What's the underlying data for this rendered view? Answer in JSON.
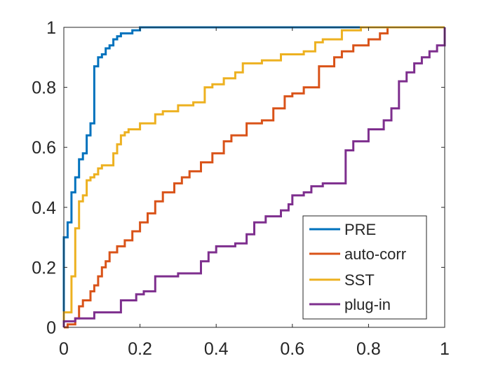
{
  "chart_data": {
    "type": "line",
    "title": "",
    "xlabel": "",
    "ylabel": "",
    "xlim": [
      0,
      1
    ],
    "ylim": [
      0,
      1
    ],
    "xticks": [
      "0",
      "0.2",
      "0.4",
      "0.6",
      "0.8",
      "1"
    ],
    "yticks": [
      "0",
      "0.2",
      "0.4",
      "0.6",
      "0.8",
      "1"
    ],
    "legend_position": "bottom-right",
    "series": [
      {
        "name": "PRE",
        "color": "#0072BD",
        "x": [
          0,
          0,
          0.01,
          0.01,
          0.02,
          0.02,
          0.03,
          0.03,
          0.04,
          0.04,
          0.05,
          0.05,
          0.06,
          0.06,
          0.07,
          0.07,
          0.08,
          0.08,
          0.09,
          0.09,
          0.1,
          0.1,
          0.11,
          0.11,
          0.12,
          0.12,
          0.13,
          0.13,
          0.14,
          0.14,
          0.15,
          0.15,
          0.18,
          0.18,
          0.2,
          0.2,
          0.21,
          0.21,
          1
        ],
        "y": [
          0,
          0.3,
          0.3,
          0.35,
          0.35,
          0.45,
          0.45,
          0.5,
          0.5,
          0.56,
          0.56,
          0.58,
          0.58,
          0.64,
          0.64,
          0.68,
          0.68,
          0.87,
          0.87,
          0.9,
          0.9,
          0.91,
          0.91,
          0.93,
          0.93,
          0.94,
          0.94,
          0.96,
          0.96,
          0.97,
          0.97,
          0.98,
          0.98,
          0.99,
          0.99,
          1,
          1,
          1,
          1
        ]
      },
      {
        "name": "auto-corr",
        "color": "#D95319",
        "x": [
          0,
          0.01,
          0.01,
          0.03,
          0.03,
          0.04,
          0.04,
          0.05,
          0.05,
          0.07,
          0.07,
          0.08,
          0.08,
          0.09,
          0.09,
          0.1,
          0.1,
          0.11,
          0.11,
          0.12,
          0.12,
          0.14,
          0.14,
          0.16,
          0.16,
          0.18,
          0.18,
          0.2,
          0.2,
          0.22,
          0.22,
          0.24,
          0.24,
          0.26,
          0.26,
          0.29,
          0.29,
          0.31,
          0.31,
          0.33,
          0.33,
          0.36,
          0.36,
          0.39,
          0.39,
          0.42,
          0.42,
          0.44,
          0.44,
          0.48,
          0.48,
          0.52,
          0.52,
          0.55,
          0.55,
          0.58,
          0.58,
          0.6,
          0.6,
          0.63,
          0.63,
          0.67,
          0.67,
          0.71,
          0.71,
          0.73,
          0.73,
          0.76,
          0.76,
          0.8,
          0.8,
          0.83,
          0.83,
          0.85,
          0.85,
          0.86,
          1
        ],
        "y": [
          0,
          0,
          0.01,
          0.01,
          0.03,
          0.03,
          0.07,
          0.07,
          0.09,
          0.09,
          0.12,
          0.12,
          0.14,
          0.14,
          0.17,
          0.17,
          0.2,
          0.2,
          0.22,
          0.22,
          0.25,
          0.25,
          0.27,
          0.27,
          0.29,
          0.29,
          0.32,
          0.32,
          0.35,
          0.35,
          0.38,
          0.38,
          0.42,
          0.42,
          0.45,
          0.45,
          0.48,
          0.48,
          0.5,
          0.5,
          0.52,
          0.52,
          0.55,
          0.55,
          0.58,
          0.58,
          0.62,
          0.62,
          0.64,
          0.64,
          0.68,
          0.68,
          0.69,
          0.69,
          0.73,
          0.73,
          0.77,
          0.77,
          0.78,
          0.78,
          0.8,
          0.8,
          0.87,
          0.87,
          0.9,
          0.9,
          0.92,
          0.92,
          0.94,
          0.94,
          0.96,
          0.96,
          0.98,
          0.98,
          1,
          1,
          1
        ]
      },
      {
        "name": "SST",
        "color": "#EDB120",
        "x": [
          0,
          0,
          0.02,
          0.02,
          0.03,
          0.03,
          0.04,
          0.04,
          0.05,
          0.05,
          0.06,
          0.06,
          0.07,
          0.07,
          0.08,
          0.08,
          0.09,
          0.09,
          0.1,
          0.1,
          0.13,
          0.13,
          0.14,
          0.14,
          0.15,
          0.15,
          0.16,
          0.16,
          0.17,
          0.17,
          0.2,
          0.2,
          0.24,
          0.24,
          0.26,
          0.26,
          0.3,
          0.3,
          0.34,
          0.34,
          0.37,
          0.37,
          0.39,
          0.39,
          0.42,
          0.42,
          0.45,
          0.45,
          0.47,
          0.47,
          0.52,
          0.52,
          0.57,
          0.57,
          0.63,
          0.63,
          0.66,
          0.66,
          0.68,
          0.68,
          0.73,
          0.73,
          0.78,
          0.78,
          0.85,
          0.85,
          1
        ],
        "y": [
          0,
          0.05,
          0.05,
          0.17,
          0.17,
          0.33,
          0.33,
          0.42,
          0.42,
          0.44,
          0.44,
          0.49,
          0.49,
          0.5,
          0.5,
          0.51,
          0.51,
          0.53,
          0.53,
          0.54,
          0.54,
          0.58,
          0.58,
          0.61,
          0.61,
          0.64,
          0.64,
          0.65,
          0.65,
          0.66,
          0.66,
          0.68,
          0.68,
          0.71,
          0.71,
          0.72,
          0.72,
          0.74,
          0.74,
          0.75,
          0.75,
          0.8,
          0.8,
          0.81,
          0.81,
          0.83,
          0.83,
          0.85,
          0.85,
          0.88,
          0.88,
          0.89,
          0.89,
          0.91,
          0.91,
          0.92,
          0.92,
          0.95,
          0.95,
          0.96,
          0.96,
          0.99,
          0.99,
          1,
          1,
          1,
          1
        ]
      },
      {
        "name": "plug-in",
        "color": "#7E2F8E",
        "x": [
          0,
          0,
          0.03,
          0.03,
          0.08,
          0.08,
          0.15,
          0.15,
          0.19,
          0.19,
          0.21,
          0.21,
          0.24,
          0.24,
          0.3,
          0.3,
          0.36,
          0.36,
          0.38,
          0.38,
          0.4,
          0.4,
          0.45,
          0.45,
          0.48,
          0.48,
          0.5,
          0.5,
          0.53,
          0.53,
          0.57,
          0.57,
          0.59,
          0.59,
          0.6,
          0.6,
          0.63,
          0.63,
          0.65,
          0.65,
          0.68,
          0.68,
          0.74,
          0.74,
          0.76,
          0.76,
          0.8,
          0.8,
          0.84,
          0.84,
          0.86,
          0.86,
          0.88,
          0.88,
          0.9,
          0.9,
          0.92,
          0.92,
          0.94,
          0.94,
          0.96,
          0.96,
          0.98,
          0.98,
          1,
          1
        ],
        "y": [
          0,
          0.02,
          0.02,
          0.03,
          0.03,
          0.05,
          0.05,
          0.09,
          0.09,
          0.11,
          0.11,
          0.12,
          0.12,
          0.17,
          0.17,
          0.18,
          0.18,
          0.22,
          0.22,
          0.25,
          0.25,
          0.27,
          0.27,
          0.28,
          0.28,
          0.31,
          0.31,
          0.35,
          0.35,
          0.37,
          0.37,
          0.39,
          0.39,
          0.41,
          0.41,
          0.44,
          0.44,
          0.45,
          0.45,
          0.47,
          0.47,
          0.48,
          0.48,
          0.59,
          0.59,
          0.62,
          0.62,
          0.66,
          0.66,
          0.69,
          0.69,
          0.73,
          0.73,
          0.82,
          0.82,
          0.85,
          0.85,
          0.88,
          0.88,
          0.9,
          0.9,
          0.92,
          0.92,
          0.94,
          0.94,
          1
        ]
      }
    ]
  }
}
